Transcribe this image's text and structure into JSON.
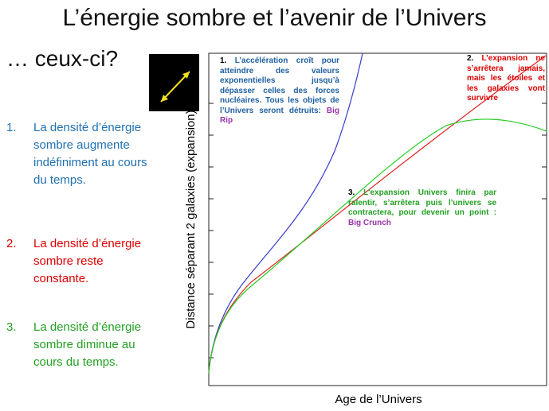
{
  "header": {
    "title": "L’énergie sombre et l’avenir de l’Univers",
    "subtitle": "… ceux-ci?"
  },
  "list": [
    {
      "number": "1.",
      "text": "La densité d’énergie sombre augmente indéfiniment au cours du temps."
    },
    {
      "number": "2.",
      "text": "La densité d’énergie sombre reste constante."
    },
    {
      "number": "3.",
      "text": "La densité d’énergie sombre diminue au cours du temps."
    }
  ],
  "diagram": {
    "y_axis_label": "Distance séparant 2 galaxies (expansion)",
    "x_axis_label": "Age de l’Univers",
    "annotations": [
      {
        "number": "1.",
        "text": "L’accélération croît pour atteindre des valeurs exponentielles jusqu’à dépasser celles des forces nucléaires. Tous les objets de l’Univers seront détruits:",
        "outcome": "Big Rip"
      },
      {
        "number": "2.",
        "text": "L’expansion ne s’arrêtera jamais, mais les étoiles et les galaxies vont survivre"
      },
      {
        "number": "3.",
        "text": "L’expansion Univers finira par ralentir, s’arrêtera puis l’univers se contractera, pour devenir un point :",
        "outcome": "Big Crunch"
      }
    ]
  }
}
